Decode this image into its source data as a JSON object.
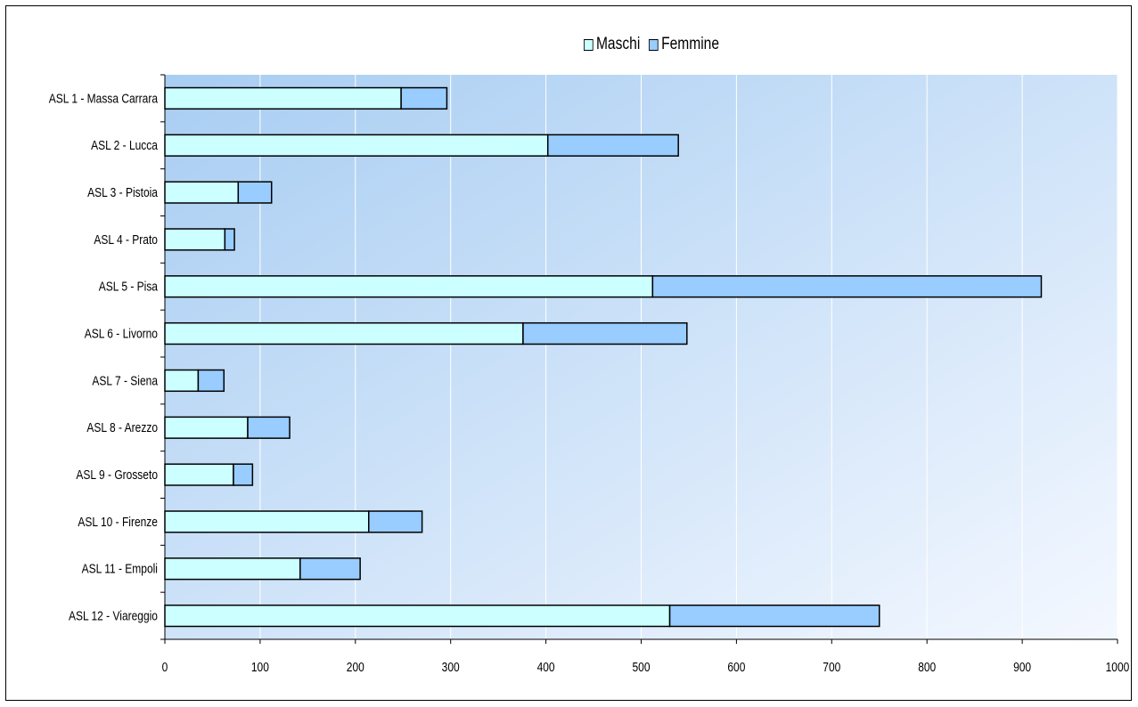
{
  "chart_data": {
    "type": "bar",
    "orientation": "horizontal",
    "stacked": true,
    "categories": [
      "ASL 1 - Massa Carrara",
      "ASL 2 - Lucca",
      "ASL 3 - Pistoia",
      "ASL 4 - Prato",
      "ASL 5 - Pisa",
      "ASL 6 - Livorno",
      "ASL 7 - Siena",
      "ASL 8 - Arezzo",
      "ASL 9 - Grosseto",
      "ASL 10 - Firenze",
      "ASL 11 - Empoli",
      "ASL 12 - Viareggio"
    ],
    "series": [
      {
        "name": "Maschi",
        "color": "#ccffff",
        "values": [
          248,
          402,
          77,
          63,
          512,
          376,
          35,
          87,
          72,
          214,
          142,
          530
        ]
      },
      {
        "name": "Femmine",
        "color": "#99ccff",
        "values": [
          48,
          137,
          35,
          10,
          408,
          172,
          27,
          44,
          20,
          56,
          63,
          220
        ]
      }
    ],
    "xlim": [
      0,
      1000
    ],
    "xticks": [
      0,
      100,
      200,
      300,
      400,
      500,
      600,
      700,
      800,
      900,
      1000
    ],
    "grid": true,
    "legend_position": "top",
    "plot_background": [
      "#a8cdf2",
      "#f4f8ff"
    ]
  }
}
